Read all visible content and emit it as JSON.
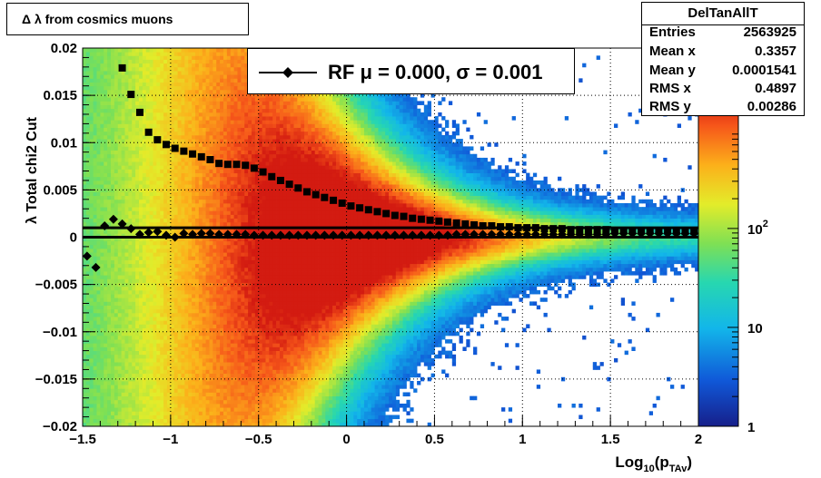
{
  "title": "Δ λ from cosmics muons",
  "stats": {
    "name": "DelTanAllT",
    "rows": [
      {
        "key": "Entries",
        "value": "2563925"
      },
      {
        "key": "Mean x",
        "value": "0.3357"
      },
      {
        "key": "Mean y",
        "value": "0.0001541"
      },
      {
        "key": "RMS x",
        "value": "0.4897"
      },
      {
        "key": "RMS y",
        "value": "0.00286"
      }
    ]
  },
  "legend": {
    "text": "RF μ =  0.000, σ =   0.001"
  },
  "chart_data": {
    "type": "heatmap",
    "xlabel": "Log10(pTAv)",
    "ylabel": "λ  Total chi2 Cut",
    "xlim": [
      -1.5,
      2.0
    ],
    "ylim": [
      -0.02,
      0.02
    ],
    "x_ticks": [
      "−1.5",
      "−1",
      "−0.5",
      "0",
      "0.5",
      "1",
      "1.5",
      "2"
    ],
    "y_ticks": [
      "−0.02",
      "−0.015",
      "−0.01",
      "−0.005",
      "0",
      "0.005",
      "0.01",
      "0.015",
      "0.02"
    ],
    "grid": true,
    "zscale": "log",
    "z_ticks": [
      "1",
      "10",
      "10^2"
    ],
    "density": {
      "ridge_center_x": 0.0,
      "ridge_center_y": 0.0,
      "peak_counts": 2000
    },
    "series": [
      {
        "name": "mean",
        "marker": "diamond",
        "x": [
          -1.475,
          -1.425,
          -1.375,
          -1.325,
          -1.275,
          -1.225,
          -1.175,
          -1.125,
          -1.075,
          -1.025,
          -0.975,
          -0.925,
          -0.875,
          -0.825,
          -0.775,
          -0.725,
          -0.675,
          -0.625,
          -0.575,
          -0.525,
          -0.475,
          -0.425,
          -0.375,
          -0.325,
          -0.275,
          -0.225,
          -0.175,
          -0.125,
          -0.075,
          -0.025,
          0.025,
          0.075,
          0.125,
          0.175,
          0.225,
          0.275,
          0.325,
          0.375,
          0.425,
          0.475,
          0.525,
          0.575,
          0.625,
          0.675,
          0.725,
          0.775,
          0.825,
          0.875,
          0.925,
          0.975,
          1.025,
          1.075,
          1.125,
          1.175,
          1.225,
          1.275,
          1.325,
          1.375,
          1.425,
          1.475,
          1.525,
          1.575,
          1.625,
          1.675,
          1.725,
          1.775,
          1.825,
          1.875,
          1.925,
          1.975
        ],
        "y": [
          -0.002,
          -0.0032,
          0.0012,
          0.0019,
          0.0014,
          0.0009,
          0.0003,
          0.0005,
          0.0006,
          0.0002,
          0.0,
          0.0004,
          0.0003,
          0.0004,
          0.0004,
          0.0003,
          0.0003,
          0.0003,
          0.0003,
          0.0002,
          0.0002,
          0.0002,
          0.0002,
          0.0002,
          0.0002,
          0.0002,
          0.0002,
          0.0002,
          0.0002,
          0.0002,
          0.0002,
          0.0002,
          0.0002,
          0.0002,
          0.0002,
          0.0002,
          0.0002,
          0.0002,
          0.0002,
          0.0002,
          0.0002,
          0.0002,
          0.0003,
          0.0003,
          0.0003,
          0.0003,
          0.0003,
          0.0003,
          0.0003,
          0.0003,
          0.0003,
          0.0003,
          0.0003,
          0.0003,
          0.0003,
          0.0003,
          0.0003,
          0.0003,
          0.0003,
          0.0003,
          0.0004,
          0.0004,
          0.0004,
          0.0004,
          0.0004,
          0.0004,
          0.0004,
          0.0004,
          0.0004,
          0.0004
        ]
      },
      {
        "name": "sigma",
        "marker": "square",
        "x": [
          -1.275,
          -1.225,
          -1.175,
          -1.125,
          -1.075,
          -1.025,
          -0.975,
          -0.925,
          -0.875,
          -0.825,
          -0.775,
          -0.725,
          -0.675,
          -0.625,
          -0.575,
          -0.525,
          -0.475,
          -0.425,
          -0.375,
          -0.325,
          -0.275,
          -0.225,
          -0.175,
          -0.125,
          -0.075,
          -0.025,
          0.025,
          0.075,
          0.125,
          0.175,
          0.225,
          0.275,
          0.325,
          0.375,
          0.425,
          0.475,
          0.525,
          0.575,
          0.625,
          0.675,
          0.725,
          0.775,
          0.825,
          0.875,
          0.925,
          0.975,
          1.025,
          1.075,
          1.125,
          1.175,
          1.225,
          1.275,
          1.325,
          1.375,
          1.425,
          1.475,
          1.525,
          1.575,
          1.625,
          1.675,
          1.725,
          1.775,
          1.825,
          1.875,
          1.925,
          1.975
        ],
        "y": [
          0.0179,
          0.0151,
          0.0132,
          0.0111,
          0.0103,
          0.0098,
          0.0094,
          0.0091,
          0.0088,
          0.0085,
          0.0082,
          0.0078,
          0.0077,
          0.0077,
          0.0076,
          0.0073,
          0.0069,
          0.0064,
          0.006,
          0.0056,
          0.0052,
          0.0048,
          0.0045,
          0.0042,
          0.0039,
          0.0036,
          0.0033,
          0.0031,
          0.0029,
          0.0027,
          0.0025,
          0.0023,
          0.0022,
          0.002,
          0.0019,
          0.0018,
          0.0017,
          0.0016,
          0.0015,
          0.0014,
          0.0013,
          0.0012,
          0.0012,
          0.0011,
          0.0011,
          0.001,
          0.001,
          0.001,
          0.0009,
          0.0009,
          0.0009,
          0.0008,
          0.0008,
          0.0008,
          0.0008,
          0.0008,
          0.0007,
          0.0007,
          0.0007,
          0.0007,
          0.0007,
          0.0007,
          0.0007,
          0.0006,
          0.0006,
          0.0006
        ]
      }
    ],
    "fit_lines": [
      0.001,
      0.0
    ]
  },
  "colors": {
    "frame": "#000000"
  }
}
